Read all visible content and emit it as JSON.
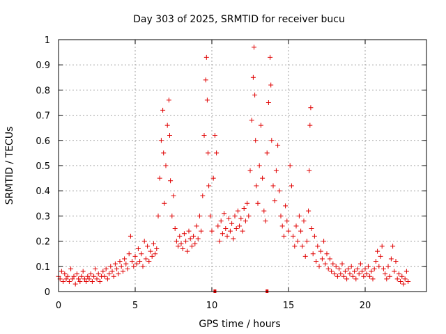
{
  "chart_data": {
    "type": "scatter",
    "title": "Day 303 of 2025, SRMTID for receiver bucu",
    "xlabel": "GPS time / hours",
    "ylabel": "SRMTID / TECUs",
    "xlim": [
      0,
      24
    ],
    "ylim": [
      0,
      1
    ],
    "xticks": [
      0,
      5,
      10,
      15,
      20
    ],
    "yticks": [
      0,
      0.1,
      0.2,
      0.3,
      0.4,
      0.5,
      0.6,
      0.7,
      0.8,
      0.9,
      1
    ],
    "xtick_labels": [
      "0",
      "5",
      "10",
      "15",
      "20"
    ],
    "ytick_labels": [
      "0",
      "0.1",
      "0.2",
      "0.3",
      "0.4",
      "0.5",
      "0.6",
      "0.7",
      "0.8",
      "0.9",
      "1"
    ],
    "grid": true,
    "marker": "+",
    "color": "#e00000",
    "series": [
      {
        "name": "SRMTID",
        "points": [
          [
            0.0,
            0.06
          ],
          [
            0.1,
            0.05
          ],
          [
            0.2,
            0.08
          ],
          [
            0.3,
            0.04
          ],
          [
            0.4,
            0.07
          ],
          [
            0.5,
            0.05
          ],
          [
            0.6,
            0.06
          ],
          [
            0.7,
            0.04
          ],
          [
            0.8,
            0.09
          ],
          [
            0.9,
            0.05
          ],
          [
            1.0,
            0.06
          ],
          [
            1.1,
            0.03
          ],
          [
            1.2,
            0.07
          ],
          [
            1.3,
            0.05
          ],
          [
            1.4,
            0.04
          ],
          [
            1.5,
            0.06
          ],
          [
            1.6,
            0.08
          ],
          [
            1.7,
            0.05
          ],
          [
            1.8,
            0.04
          ],
          [
            1.9,
            0.06
          ],
          [
            2.0,
            0.05
          ],
          [
            2.1,
            0.07
          ],
          [
            2.2,
            0.04
          ],
          [
            2.3,
            0.06
          ],
          [
            2.4,
            0.09
          ],
          [
            2.5,
            0.05
          ],
          [
            2.6,
            0.07
          ],
          [
            2.7,
            0.04
          ],
          [
            2.8,
            0.06
          ],
          [
            2.9,
            0.08
          ],
          [
            3.0,
            0.06
          ],
          [
            3.1,
            0.09
          ],
          [
            3.2,
            0.05
          ],
          [
            3.3,
            0.07
          ],
          [
            3.4,
            0.1
          ],
          [
            3.5,
            0.08
          ],
          [
            3.6,
            0.06
          ],
          [
            3.7,
            0.11
          ],
          [
            3.8,
            0.09
          ],
          [
            3.9,
            0.07
          ],
          [
            4.0,
            0.12
          ],
          [
            4.1,
            0.1
          ],
          [
            4.2,
            0.08
          ],
          [
            4.3,
            0.13
          ],
          [
            4.4,
            0.11
          ],
          [
            4.5,
            0.09
          ],
          [
            4.6,
            0.15
          ],
          [
            4.7,
            0.22
          ],
          [
            4.8,
            0.12
          ],
          [
            4.9,
            0.1
          ],
          [
            5.0,
            0.14
          ],
          [
            5.1,
            0.11
          ],
          [
            5.2,
            0.17
          ],
          [
            5.3,
            0.12
          ],
          [
            5.4,
            0.15
          ],
          [
            5.5,
            0.1
          ],
          [
            5.6,
            0.2
          ],
          [
            5.7,
            0.13
          ],
          [
            5.8,
            0.18
          ],
          [
            5.9,
            0.12
          ],
          [
            6.0,
            0.16
          ],
          [
            6.1,
            0.14
          ],
          [
            6.2,
            0.19
          ],
          [
            6.3,
            0.15
          ],
          [
            6.4,
            0.17
          ],
          [
            6.5,
            0.3
          ],
          [
            6.6,
            0.45
          ],
          [
            6.7,
            0.6
          ],
          [
            6.8,
            0.72
          ],
          [
            6.85,
            0.55
          ],
          [
            6.9,
            0.35
          ],
          [
            7.0,
            0.5
          ],
          [
            7.1,
            0.66
          ],
          [
            7.2,
            0.76
          ],
          [
            7.25,
            0.62
          ],
          [
            7.3,
            0.44
          ],
          [
            7.4,
            0.3
          ],
          [
            7.5,
            0.38
          ],
          [
            7.6,
            0.25
          ],
          [
            7.7,
            0.2
          ],
          [
            7.8,
            0.18
          ],
          [
            7.9,
            0.22
          ],
          [
            8.0,
            0.19
          ],
          [
            8.1,
            0.17
          ],
          [
            8.2,
            0.23
          ],
          [
            8.3,
            0.2
          ],
          [
            8.4,
            0.16
          ],
          [
            8.5,
            0.24
          ],
          [
            8.6,
            0.21
          ],
          [
            8.7,
            0.18
          ],
          [
            8.8,
            0.22
          ],
          [
            8.9,
            0.19
          ],
          [
            9.0,
            0.26
          ],
          [
            9.1,
            0.21
          ],
          [
            9.2,
            0.3
          ],
          [
            9.3,
            0.24
          ],
          [
            9.4,
            0.38
          ],
          [
            9.5,
            0.62
          ],
          [
            9.6,
            0.84
          ],
          [
            9.65,
            0.93
          ],
          [
            9.7,
            0.76
          ],
          [
            9.75,
            0.55
          ],
          [
            9.8,
            0.42
          ],
          [
            9.9,
            0.3
          ],
          [
            10.0,
            0.24
          ],
          [
            10.1,
            0.45
          ],
          [
            10.2,
            0.62
          ],
          [
            10.3,
            0.55
          ],
          [
            10.4,
            0.26
          ],
          [
            10.5,
            0.2
          ],
          [
            10.6,
            0.28
          ],
          [
            10.7,
            0.23
          ],
          [
            10.8,
            0.31
          ],
          [
            10.9,
            0.25
          ],
          [
            11.0,
            0.22
          ],
          [
            11.1,
            0.29
          ],
          [
            11.2,
            0.24
          ],
          [
            11.3,
            0.27
          ],
          [
            11.4,
            0.21
          ],
          [
            11.5,
            0.3
          ],
          [
            11.6,
            0.25
          ],
          [
            11.7,
            0.32
          ],
          [
            11.8,
            0.26
          ],
          [
            11.9,
            0.29
          ],
          [
            12.0,
            0.24
          ],
          [
            12.1,
            0.33
          ],
          [
            12.2,
            0.28
          ],
          [
            12.3,
            0.35
          ],
          [
            12.4,
            0.3
          ],
          [
            12.5,
            0.48
          ],
          [
            12.6,
            0.68
          ],
          [
            12.7,
            0.85
          ],
          [
            12.75,
            0.97
          ],
          [
            12.8,
            0.78
          ],
          [
            12.85,
            0.6
          ],
          [
            12.9,
            0.42
          ],
          [
            13.0,
            0.35
          ],
          [
            13.1,
            0.5
          ],
          [
            13.2,
            0.66
          ],
          [
            13.3,
            0.45
          ],
          [
            13.4,
            0.32
          ],
          [
            13.5,
            0.28
          ],
          [
            13.6,
            0.55
          ],
          [
            13.7,
            0.75
          ],
          [
            13.8,
            0.93
          ],
          [
            13.85,
            0.82
          ],
          [
            13.9,
            0.6
          ],
          [
            14.0,
            0.42
          ],
          [
            14.1,
            0.36
          ],
          [
            14.2,
            0.48
          ],
          [
            14.3,
            0.58
          ],
          [
            14.4,
            0.4
          ],
          [
            14.5,
            0.3
          ],
          [
            14.6,
            0.26
          ],
          [
            14.7,
            0.22
          ],
          [
            14.8,
            0.34
          ],
          [
            14.9,
            0.28
          ],
          [
            15.0,
            0.24
          ],
          [
            15.1,
            0.5
          ],
          [
            15.2,
            0.42
          ],
          [
            15.3,
            0.22
          ],
          [
            15.4,
            0.18
          ],
          [
            15.5,
            0.26
          ],
          [
            15.6,
            0.2
          ],
          [
            15.7,
            0.3
          ],
          [
            15.8,
            0.24
          ],
          [
            15.9,
            0.18
          ],
          [
            16.0,
            0.28
          ],
          [
            16.1,
            0.14
          ],
          [
            16.2,
            0.2
          ],
          [
            16.3,
            0.32
          ],
          [
            16.35,
            0.48
          ],
          [
            16.4,
            0.66
          ],
          [
            16.45,
            0.73
          ],
          [
            16.5,
            0.25
          ],
          [
            16.6,
            0.15
          ],
          [
            16.7,
            0.22
          ],
          [
            16.8,
            0.12
          ],
          [
            16.9,
            0.18
          ],
          [
            17.0,
            0.1
          ],
          [
            17.1,
            0.16
          ],
          [
            17.2,
            0.13
          ],
          [
            17.3,
            0.2
          ],
          [
            17.4,
            0.11
          ],
          [
            17.5,
            0.15
          ],
          [
            17.6,
            0.09
          ],
          [
            17.7,
            0.13
          ],
          [
            17.8,
            0.08
          ],
          [
            17.9,
            0.11
          ],
          [
            18.0,
            0.07
          ],
          [
            18.1,
            0.1
          ],
          [
            18.2,
            0.06
          ],
          [
            18.3,
            0.09
          ],
          [
            18.4,
            0.07
          ],
          [
            18.5,
            0.11
          ],
          [
            18.6,
            0.06
          ],
          [
            18.7,
            0.08
          ],
          [
            18.8,
            0.05
          ],
          [
            18.9,
            0.09
          ],
          [
            19.0,
            0.07
          ],
          [
            19.1,
            0.1
          ],
          [
            19.2,
            0.06
          ],
          [
            19.3,
            0.08
          ],
          [
            19.4,
            0.05
          ],
          [
            19.5,
            0.09
          ],
          [
            19.6,
            0.07
          ],
          [
            19.7,
            0.11
          ],
          [
            19.8,
            0.08
          ],
          [
            19.9,
            0.06
          ],
          [
            20.0,
            0.09
          ],
          [
            20.1,
            0.07
          ],
          [
            20.2,
            0.1
          ],
          [
            20.3,
            0.06
          ],
          [
            20.4,
            0.08
          ],
          [
            20.5,
            0.05
          ],
          [
            20.6,
            0.09
          ],
          [
            20.7,
            0.12
          ],
          [
            20.8,
            0.16
          ],
          [
            20.9,
            0.1
          ],
          [
            21.0,
            0.14
          ],
          [
            21.1,
            0.18
          ],
          [
            21.2,
            0.09
          ],
          [
            21.3,
            0.07
          ],
          [
            21.4,
            0.05
          ],
          [
            21.5,
            0.1
          ],
          [
            21.6,
            0.06
          ],
          [
            21.7,
            0.13
          ],
          [
            21.8,
            0.18
          ],
          [
            21.9,
            0.08
          ],
          [
            22.0,
            0.12
          ],
          [
            22.1,
            0.05
          ],
          [
            22.2,
            0.07
          ],
          [
            22.3,
            0.04
          ],
          [
            22.4,
            0.06
          ],
          [
            22.5,
            0.03
          ],
          [
            22.6,
            0.05
          ],
          [
            22.7,
            0.08
          ],
          [
            22.8,
            0.04
          ]
        ]
      }
    ],
    "axis_markers": [
      {
        "x": 10.2,
        "y": 0
      },
      {
        "x": 13.6,
        "y": 0
      }
    ]
  }
}
